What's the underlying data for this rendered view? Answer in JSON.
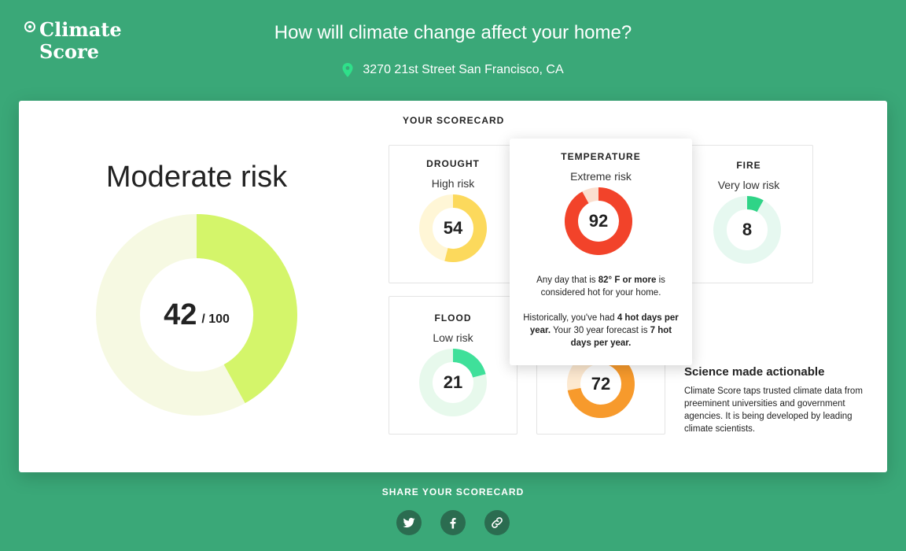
{
  "header": {
    "logo_line1": "Climate",
    "logo_line2": "Score",
    "title": "How will climate change affect your home?",
    "address": "3270 21st Street San Francisco, CA",
    "pin_icon": "location-pin-icon"
  },
  "overall": {
    "label": "Moderate risk",
    "score": "42",
    "total": "/ 100",
    "value": 42,
    "max": 100,
    "fill_color": "#d4f56a",
    "track_color": "#f6f9e2"
  },
  "scorecard": {
    "label": "YOUR SCORECARD",
    "cards": [
      {
        "name": "DROUGHT",
        "level": "High risk",
        "score": "54",
        "value": 54,
        "fill": "#fcd95c",
        "track": "#fff6d6",
        "cap": ""
      },
      {
        "name": "FIRE",
        "level": "Very low risk",
        "score": "8",
        "value": 8,
        "fill": "#2fd487",
        "track": "#e6f8f0",
        "cap": ""
      },
      {
        "name": "FLOOD",
        "level": "Low risk",
        "score": "21",
        "value": 21,
        "fill": "#3fe09a",
        "track": "#e7f9ec",
        "cap": ""
      },
      {
        "name": "",
        "level": "",
        "score": "72",
        "value": 72,
        "fill": "#f79a2c",
        "track": "#fde9d0",
        "cap": ""
      }
    ],
    "popup": {
      "name": "TEMPERATURE",
      "level": "Extreme risk",
      "score": "92",
      "value": 92,
      "fill": "#f2432a",
      "track": "#fbdfcf",
      "p1_a": "Any day that is ",
      "p1_b": "82° F or more",
      "p1_c": " is considered hot for your home.",
      "p2_a": "Historically, you've had ",
      "p2_b": "4 hot days per year.",
      "p2_c": " Your 30 year forecast is ",
      "p2_d": "7 hot days per year."
    }
  },
  "science": {
    "title": "Science made actionable",
    "body": "Climate Score taps trusted climate data from preeminent universities and government agencies. It is being developed by leading climate scientists."
  },
  "share": {
    "label": "SHARE YOUR SCORECARD",
    "buttons": [
      {
        "icon": "twitter-icon"
      },
      {
        "icon": "facebook-icon"
      },
      {
        "icon": "link-icon"
      }
    ]
  }
}
